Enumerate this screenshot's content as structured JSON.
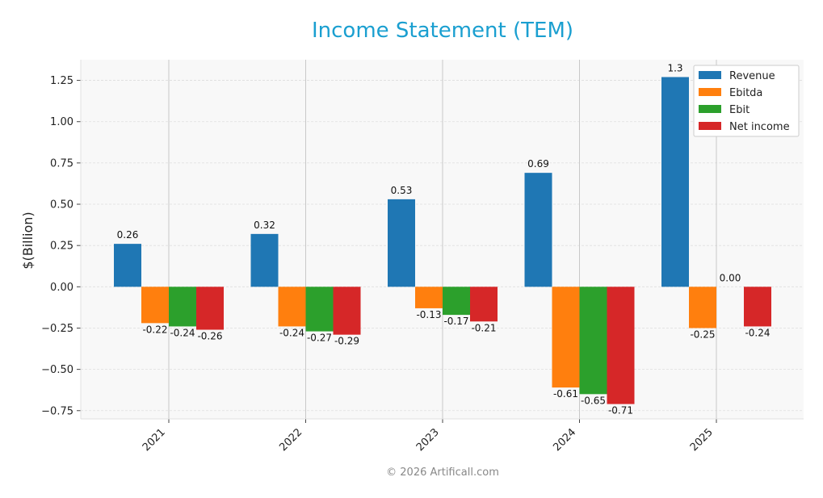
{
  "chart_data": {
    "type": "bar",
    "title": "Income Statement (TEM)",
    "ylabel": "$(Billion)",
    "xlabel": "",
    "categories": [
      "2021",
      "2022",
      "2023",
      "2024",
      "2025"
    ],
    "ylim": [
      -0.8,
      1.375
    ],
    "yticks": [
      -0.75,
      -0.5,
      -0.25,
      0.0,
      0.25,
      0.5,
      0.75,
      1.0,
      1.25
    ],
    "ytick_labels": [
      "−0.75",
      "−0.50",
      "−0.25",
      "0.00",
      "0.25",
      "0.50",
      "0.75",
      "1.00",
      "1.25"
    ],
    "grid": true,
    "legend_position": "top-right",
    "series": [
      {
        "name": "Revenue",
        "color": "#1f77b4",
        "values": [
          0.26,
          0.32,
          0.53,
          0.69,
          1.27
        ],
        "labels": [
          "0.26",
          "0.32",
          "0.53",
          "0.69",
          "1.3"
        ]
      },
      {
        "name": "Ebitda",
        "color": "#ff7f0e",
        "values": [
          -0.22,
          -0.24,
          -0.13,
          -0.61,
          -0.25
        ],
        "labels": [
          "-0.22",
          "-0.24",
          "-0.13",
          "-0.61",
          "-0.25"
        ]
      },
      {
        "name": "Ebit",
        "color": "#2ca02c",
        "values": [
          -0.24,
          -0.27,
          -0.17,
          -0.65,
          0.0
        ],
        "labels": [
          "-0.24",
          "-0.27",
          "-0.17",
          "-0.65",
          "0.00"
        ]
      },
      {
        "name": "Net income",
        "color": "#d62728",
        "values": [
          -0.26,
          -0.29,
          -0.21,
          -0.71,
          -0.24
        ],
        "labels": [
          "-0.26",
          "-0.29",
          "-0.21",
          "-0.71",
          "-0.24"
        ]
      }
    ]
  },
  "footer": "© 2026 Artificall.com"
}
